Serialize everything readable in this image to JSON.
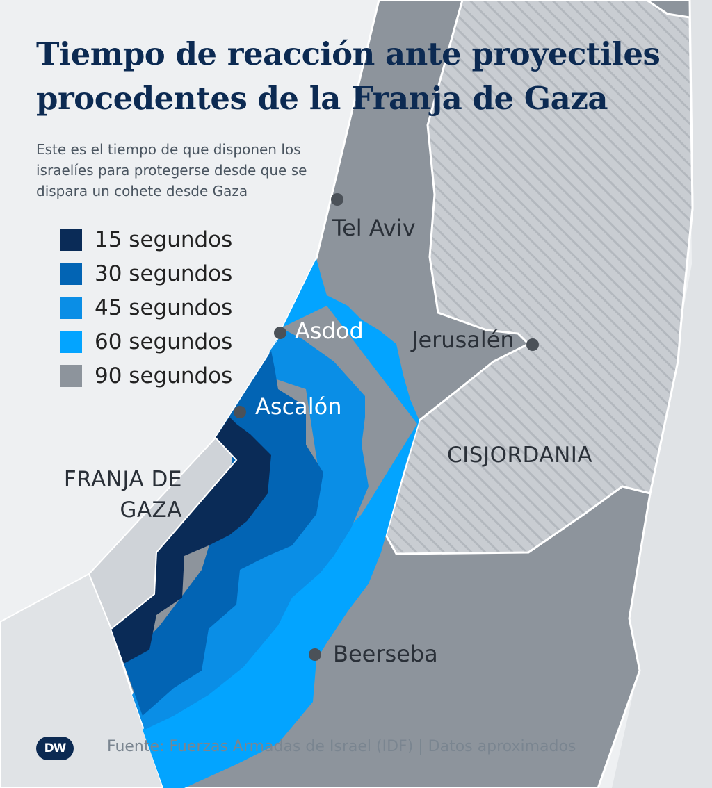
{
  "title": "Tiempo de reacción ante proyectiles procedentes de la Franja de Gaza",
  "subtitle": "Este es el tiempo de que disponen los israelíes para protegerse desde que se dispara un cohete desde Gaza",
  "legend": [
    {
      "label": "15 segundos",
      "color": "#0a2b57"
    },
    {
      "label": "30 segundos",
      "color": "#0264b4"
    },
    {
      "label": "45 segundos",
      "color": "#0a8ee6"
    },
    {
      "label": "60 segundos",
      "color": "#03a4ff"
    },
    {
      "label": "90 segundos",
      "color": "#8d949c"
    }
  ],
  "places": {
    "tel_aviv": "Tel Aviv",
    "asdod": "Asdod",
    "ascalon": "Ascalón",
    "jerusalen": "Jerusalén",
    "beerseba": "Beerseba"
  },
  "regions": {
    "cisjordania": "CISJORDANIA",
    "gaza_line1": "FRANJA DE",
    "gaza_line2": "GAZA"
  },
  "source": "Fuente: Fuerzas Armadas de Israel (IDF) | Datos aproximados",
  "logo": "DW",
  "colors": {
    "sea": "#eef0f2",
    "israel": "#8d949c",
    "westbank": "#c9cdd2",
    "gaza": "#cfd3d8",
    "neighbor": "#e0e3e6",
    "city_dot": "#4b5158"
  }
}
